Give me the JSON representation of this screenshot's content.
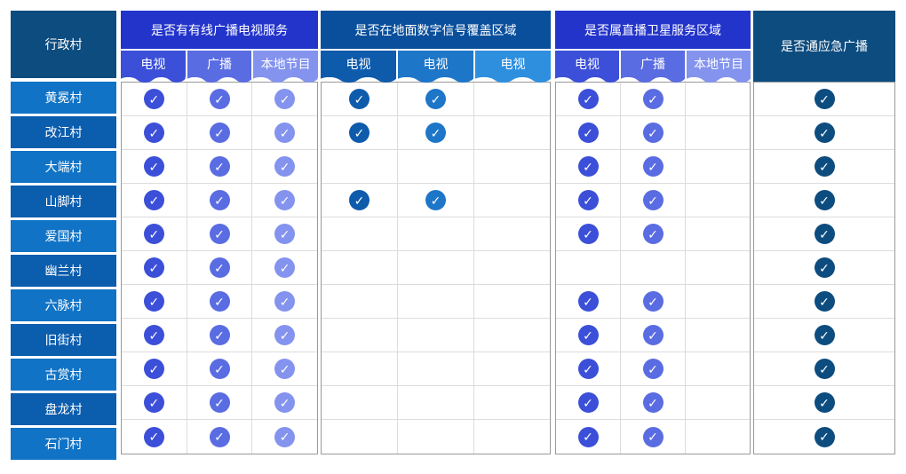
{
  "village_column": {
    "header_label": "行政村",
    "header_bg": "#0d4c7f",
    "row_bg_light": "#1173c5",
    "row_bg_dark": "#0b5dad"
  },
  "groups": [
    {
      "id": "cable",
      "title": "是否有有线广播电视服务",
      "header_bg": "#2334cb",
      "columns": [
        {
          "label": "电视",
          "color": "#3b4fd8"
        },
        {
          "label": "广播",
          "color": "#5a6ce2"
        },
        {
          "label": "本地节目",
          "color": "#8393ee"
        }
      ]
    },
    {
      "id": "terrestrial",
      "title": "是否在地面数字信号覆盖区域",
      "header_bg": "#0a4f9c",
      "columns": [
        {
          "label": "电视",
          "color": "#0e5bac"
        },
        {
          "label": "电视",
          "color": "#1d76c8"
        },
        {
          "label": "电视",
          "color": "#2e8fdf"
        }
      ]
    },
    {
      "id": "satellite",
      "title": "是否属直播卫星服务区域",
      "header_bg": "#2334cb",
      "columns": [
        {
          "label": "电视",
          "color": "#3b4fd8"
        },
        {
          "label": "广播",
          "color": "#5a6ce2"
        },
        {
          "label": "本地节目",
          "color": "#8393ee"
        }
      ]
    },
    {
      "id": "emergency",
      "title": "是否通应急广播",
      "header_bg": "#0d4c7f",
      "columns": [
        {
          "label": "",
          "color": "#0d4c7f"
        }
      ]
    }
  ],
  "check_icon": "✓",
  "palette": {
    "grid_outer_border": "#999999",
    "grid_inner_line": "#dcdcdc",
    "page_bg": "#ffffff",
    "text_on_color": "#ffffff"
  },
  "rows": [
    {
      "village": "黄冕村",
      "cable": [
        1,
        1,
        1
      ],
      "terrestrial": [
        1,
        1,
        0
      ],
      "satellite": [
        1,
        1,
        0
      ],
      "emergency": [
        1
      ]
    },
    {
      "village": "改江村",
      "cable": [
        1,
        1,
        1
      ],
      "terrestrial": [
        1,
        1,
        0
      ],
      "satellite": [
        1,
        1,
        0
      ],
      "emergency": [
        1
      ]
    },
    {
      "village": "大端村",
      "cable": [
        1,
        1,
        1
      ],
      "terrestrial": [
        0,
        0,
        0
      ],
      "satellite": [
        1,
        1,
        0
      ],
      "emergency": [
        1
      ]
    },
    {
      "village": "山脚村",
      "cable": [
        1,
        1,
        1
      ],
      "terrestrial": [
        1,
        1,
        0
      ],
      "satellite": [
        1,
        1,
        0
      ],
      "emergency": [
        1
      ]
    },
    {
      "village": "爱国村",
      "cable": [
        1,
        1,
        1
      ],
      "terrestrial": [
        0,
        0,
        0
      ],
      "satellite": [
        1,
        1,
        0
      ],
      "emergency": [
        1
      ]
    },
    {
      "village": "幽兰村",
      "cable": [
        1,
        1,
        1
      ],
      "terrestrial": [
        0,
        0,
        0
      ],
      "satellite": [
        0,
        0,
        0
      ],
      "emergency": [
        1
      ]
    },
    {
      "village": "六脉村",
      "cable": [
        1,
        1,
        1
      ],
      "terrestrial": [
        0,
        0,
        0
      ],
      "satellite": [
        1,
        1,
        0
      ],
      "emergency": [
        1
      ]
    },
    {
      "village": "旧街村",
      "cable": [
        1,
        1,
        1
      ],
      "terrestrial": [
        0,
        0,
        0
      ],
      "satellite": [
        1,
        1,
        0
      ],
      "emergency": [
        1
      ]
    },
    {
      "village": "古赏村",
      "cable": [
        1,
        1,
        1
      ],
      "terrestrial": [
        0,
        0,
        0
      ],
      "satellite": [
        1,
        1,
        0
      ],
      "emergency": [
        1
      ]
    },
    {
      "village": "盘龙村",
      "cable": [
        1,
        1,
        1
      ],
      "terrestrial": [
        0,
        0,
        0
      ],
      "satellite": [
        1,
        1,
        0
      ],
      "emergency": [
        1
      ]
    },
    {
      "village": "石门村",
      "cable": [
        1,
        1,
        1
      ],
      "terrestrial": [
        0,
        0,
        0
      ],
      "satellite": [
        1,
        1,
        0
      ],
      "emergency": [
        1
      ]
    }
  ]
}
